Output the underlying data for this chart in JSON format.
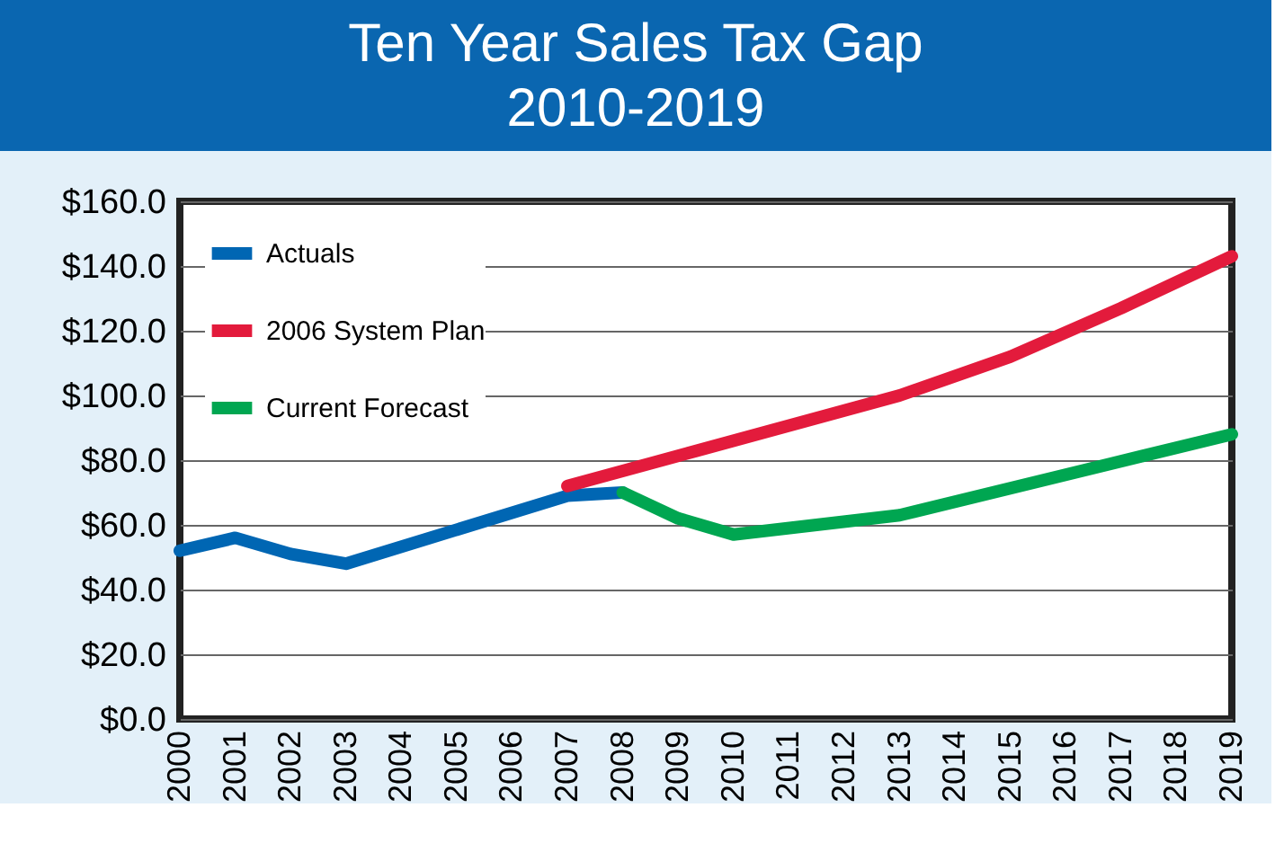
{
  "chart_data": {
    "type": "line",
    "title": "Ten Year Sales Tax Gap 2010-2019",
    "series": [
      {
        "name": "Actuals",
        "color": "#0066b3",
        "x": [
          2000,
          2001,
          2002,
          2003,
          2007,
          2008
        ],
        "values": [
          52,
          56,
          51,
          48,
          69,
          70
        ]
      },
      {
        "name": "2006 System Plan",
        "color": "#e31b3c",
        "x": [
          2007,
          2013,
          2015,
          2017,
          2019
        ],
        "values": [
          72,
          100,
          112,
          127,
          143
        ]
      },
      {
        "name": "Current Forecast",
        "color": "#00a651",
        "x": [
          2008,
          2009,
          2010,
          2013,
          2019
        ],
        "values": [
          70,
          62,
          57,
          63,
          88
        ]
      }
    ],
    "xlim": [
      2000,
      2019
    ],
    "xticks": [
      2000,
      2001,
      2002,
      2003,
      2004,
      2005,
      2006,
      2007,
      2008,
      2009,
      2010,
      2011,
      2012,
      2013,
      2014,
      2015,
      2016,
      2017,
      2018,
      2019
    ],
    "ylim": [
      0,
      160
    ],
    "yticks": [
      {
        "value": 0,
        "label": "$0.0"
      },
      {
        "value": 20,
        "label": "$20.0"
      },
      {
        "value": 40,
        "label": "$40.0"
      },
      {
        "value": 60,
        "label": "$60.0"
      },
      {
        "value": 80,
        "label": "$80.0"
      },
      {
        "value": 100,
        "label": "$100.0"
      },
      {
        "value": 120,
        "label": "$120.0"
      },
      {
        "value": 140,
        "label": "$140.0"
      },
      {
        "value": 160,
        "label": "$160.0"
      }
    ],
    "grid": "y",
    "legend": "top left",
    "line_style": "solid",
    "marker": "none"
  }
}
